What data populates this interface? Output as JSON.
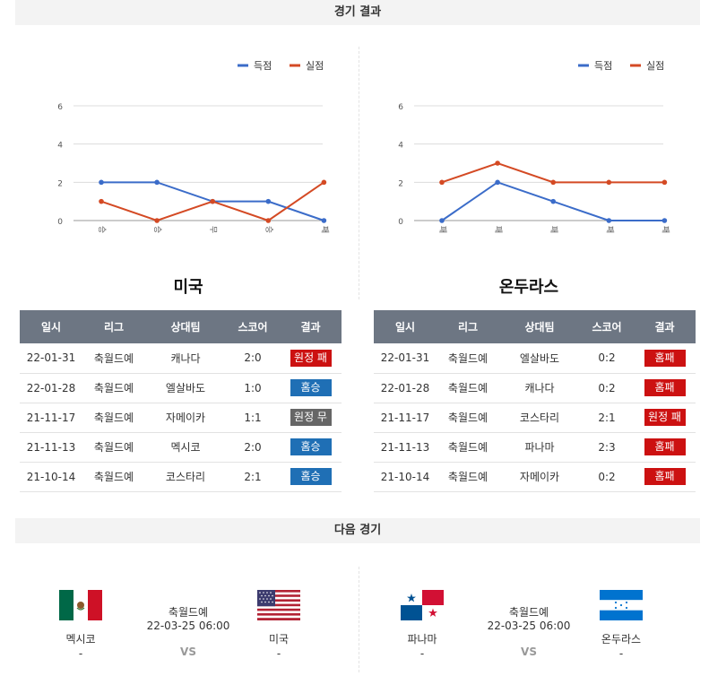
{
  "sections": {
    "results_title": "경기 결과",
    "next_title": "다음 경기"
  },
  "legend": {
    "scored": "득점",
    "conceded": "실점"
  },
  "colors": {
    "scored_line": "#3b6cc9",
    "conceded_line": "#d44a24",
    "home_badge": "#1f6fb5",
    "away_loss_badge": "#cc1111",
    "loss_badge": "#cc1111",
    "draw_badge": "#666666"
  },
  "teams": [
    {
      "name": "미국",
      "columns": [
        "일시",
        "리그",
        "상대팀",
        "스코어",
        "결과"
      ],
      "rows": [
        {
          "date": "22-01-31",
          "league": "축월드예",
          "opponent": "캐나다",
          "score": "2:0",
          "result": "원정 패",
          "result_color": "#cc1111"
        },
        {
          "date": "22-01-28",
          "league": "축월드예",
          "opponent": "엘살바도",
          "score": "1:0",
          "result": "홈승",
          "result_color": "#1f6fb5"
        },
        {
          "date": "21-11-17",
          "league": "축월드예",
          "opponent": "자메이카",
          "score": "1:1",
          "result": "원정 무",
          "result_color": "#666666"
        },
        {
          "date": "21-11-13",
          "league": "축월드예",
          "opponent": "멕시코",
          "score": "2:0",
          "result": "홈승",
          "result_color": "#1f6fb5"
        },
        {
          "date": "21-10-14",
          "league": "축월드예",
          "opponent": "코스타리",
          "score": "2:1",
          "result": "홈승",
          "result_color": "#1f6fb5"
        }
      ]
    },
    {
      "name": "온두라스",
      "columns": [
        "일시",
        "리그",
        "상대팀",
        "스코어",
        "결과"
      ],
      "rows": [
        {
          "date": "22-01-31",
          "league": "축월드예",
          "opponent": "엘살바도",
          "score": "0:2",
          "result": "홈패",
          "result_color": "#cc1111"
        },
        {
          "date": "22-01-28",
          "league": "축월드예",
          "opponent": "캐나다",
          "score": "0:2",
          "result": "홈패",
          "result_color": "#cc1111"
        },
        {
          "date": "21-11-17",
          "league": "축월드예",
          "opponent": "코스타리",
          "score": "2:1",
          "result": "원정 패",
          "result_color": "#cc1111"
        },
        {
          "date": "21-11-13",
          "league": "축월드예",
          "opponent": "파나마",
          "score": "2:3",
          "result": "홈패",
          "result_color": "#cc1111"
        },
        {
          "date": "21-10-14",
          "league": "축월드예",
          "opponent": "자메이카",
          "score": "0:2",
          "result": "홈패",
          "result_color": "#cc1111"
        }
      ]
    }
  ],
  "chart_data": [
    {
      "type": "line",
      "categories": [
        "승",
        "승",
        "무",
        "승",
        "패"
      ],
      "ylim": [
        0,
        6
      ],
      "yticks": [
        0,
        2,
        4,
        6
      ],
      "grid": true,
      "legend_position": "top-right",
      "series": [
        {
          "name": "득점",
          "values": [
            2,
            2,
            1,
            1,
            0
          ],
          "color": "#3b6cc9"
        },
        {
          "name": "실점",
          "values": [
            1,
            0,
            1,
            0,
            2
          ],
          "color": "#d44a24"
        }
      ]
    },
    {
      "type": "line",
      "categories": [
        "패",
        "패",
        "패",
        "패",
        "패"
      ],
      "ylim": [
        0,
        6
      ],
      "yticks": [
        0,
        2,
        4,
        6
      ],
      "grid": true,
      "legend_position": "top-right",
      "series": [
        {
          "name": "득점",
          "values": [
            0,
            2,
            1,
            0,
            0
          ],
          "color": "#3b6cc9"
        },
        {
          "name": "실점",
          "values": [
            2,
            3,
            2,
            2,
            2
          ],
          "color": "#d44a24"
        }
      ]
    }
  ],
  "next_matches": [
    {
      "home": {
        "name": "멕시코",
        "score": "-",
        "flag": "mexico-flag-icon"
      },
      "away": {
        "name": "미국",
        "score": "-",
        "flag": "usa-flag-icon"
      },
      "league": "축월드예",
      "datetime": "22-03-25 06:00",
      "vs": "VS"
    },
    {
      "home": {
        "name": "파나마",
        "score": "-",
        "flag": "panama-flag-icon"
      },
      "away": {
        "name": "온두라스",
        "score": "-",
        "flag": "honduras-flag-icon"
      },
      "league": "축월드예",
      "datetime": "22-03-25 06:00",
      "vs": "VS"
    }
  ]
}
